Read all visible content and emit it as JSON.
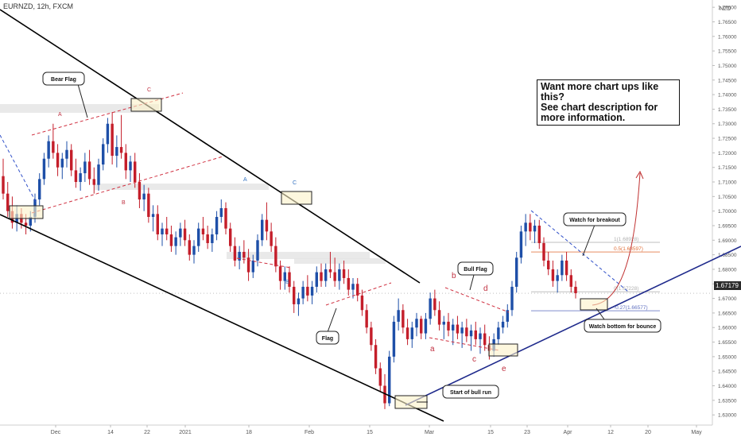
{
  "symbol": "EURNZD, 12h, FXCM",
  "currency": "NZD",
  "current_price": "1.67179",
  "callout": {
    "line1": "Want more chart ups like this?",
    "line2": "See chart description for more information."
  },
  "chart_data": {
    "type": "candlestick",
    "y_ticks": [
      "1.63000",
      "1.63500",
      "1.64000",
      "1.64500",
      "1.65000",
      "1.65500",
      "1.66000",
      "1.66500",
      "1.67000",
      "1.67500",
      "1.68000",
      "1.68500",
      "1.69000",
      "1.69500",
      "1.70000",
      "1.70500",
      "1.71000",
      "1.71500",
      "1.72000",
      "1.72500",
      "1.73000",
      "1.73500",
      "1.74000",
      "1.74500",
      "1.75000",
      "1.75500",
      "1.76000",
      "1.76500",
      "1.77000"
    ],
    "x_ticks": [
      "Dec",
      "14",
      "22",
      "2021",
      "18",
      "Feb",
      "15",
      "Mar",
      "15",
      "23",
      "Apr",
      "12",
      "20",
      "May"
    ],
    "ylim": [
      1.6265,
      1.7725
    ],
    "colors": {
      "up": "#1e4fa8",
      "down": "#c41e2a",
      "trend": "#000000",
      "support": "#1f2a8c",
      "dashed": "#d03040",
      "watch": "#c03030"
    },
    "annotations": {
      "bear_flag": "Bear Flag",
      "flag": "Flag",
      "bull_flag": "Bull Flag",
      "start_bull": "Start of bull run",
      "watch_breakout": "Watch for breakout",
      "watch_bottom": "Watch bottom for bounce",
      "A1": "A",
      "B1": "B",
      "C1": "C",
      "A2": "A",
      "B2": "B",
      "C2": "C",
      "a": "a",
      "b": "b",
      "c": "c",
      "d": "d",
      "e": "e"
    },
    "fib_levels": [
      {
        "label": "1(1.68928)",
        "price": 1.68928,
        "color": "#b0b0b0"
      },
      {
        "label": "0.5(1.68597)",
        "price": 1.68597,
        "color": "#e0703a"
      },
      {
        "label": "0(1.67228)",
        "price": 1.67228,
        "color": "#b0b0b0"
      },
      {
        "label": "-0.27(1.66577)",
        "price": 1.66577,
        "color": "#6070c0"
      }
    ],
    "candles": [
      [
        1.712,
        1.718,
        1.704,
        1.706
      ],
      [
        1.706,
        1.71,
        1.698,
        1.7
      ],
      [
        1.7,
        1.705,
        1.694,
        1.696
      ],
      [
        1.696,
        1.702,
        1.693,
        1.699
      ],
      [
        1.699,
        1.701,
        1.694,
        1.696
      ],
      [
        1.696,
        1.699,
        1.692,
        1.695
      ],
      [
        1.695,
        1.7,
        1.693,
        1.698
      ],
      [
        1.698,
        1.706,
        1.696,
        1.704
      ],
      [
        1.704,
        1.713,
        1.702,
        1.711
      ],
      [
        1.711,
        1.72,
        1.709,
        1.718
      ],
      [
        1.718,
        1.726,
        1.715,
        1.724
      ],
      [
        1.724,
        1.73,
        1.718,
        1.72
      ],
      [
        1.72,
        1.723,
        1.712,
        1.715
      ],
      [
        1.715,
        1.72,
        1.711,
        1.718
      ],
      [
        1.718,
        1.724,
        1.715,
        1.721
      ],
      [
        1.721,
        1.723,
        1.712,
        1.714
      ],
      [
        1.714,
        1.718,
        1.708,
        1.71
      ],
      [
        1.71,
        1.715,
        1.707,
        1.713
      ],
      [
        1.713,
        1.72,
        1.71,
        1.717
      ],
      [
        1.717,
        1.721,
        1.709,
        1.711
      ],
      [
        1.711,
        1.715,
        1.706,
        1.709
      ],
      [
        1.709,
        1.718,
        1.707,
        1.716
      ],
      [
        1.716,
        1.725,
        1.714,
        1.723
      ],
      [
        1.723,
        1.732,
        1.72,
        1.73
      ],
      [
        1.73,
        1.734,
        1.716,
        1.719
      ],
      [
        1.719,
        1.726,
        1.715,
        1.722
      ],
      [
        1.722,
        1.733,
        1.718,
        1.72
      ],
      [
        1.72,
        1.723,
        1.711,
        1.714
      ],
      [
        1.714,
        1.719,
        1.71,
        1.717
      ],
      [
        1.717,
        1.72,
        1.708,
        1.71
      ],
      [
        1.71,
        1.713,
        1.701,
        1.704
      ],
      [
        1.704,
        1.709,
        1.7,
        1.706
      ],
      [
        1.706,
        1.708,
        1.696,
        1.698
      ],
      [
        1.698,
        1.702,
        1.693,
        1.699
      ],
      [
        1.699,
        1.702,
        1.69,
        1.692
      ],
      [
        1.692,
        1.696,
        1.688,
        1.694
      ],
      [
        1.694,
        1.698,
        1.69,
        1.692
      ],
      [
        1.692,
        1.695,
        1.686,
        1.688
      ],
      [
        1.688,
        1.693,
        1.685,
        1.691
      ],
      [
        1.691,
        1.696,
        1.688,
        1.694
      ],
      [
        1.694,
        1.697,
        1.688,
        1.69
      ],
      [
        1.69,
        1.692,
        1.683,
        1.685
      ],
      [
        1.685,
        1.69,
        1.682,
        1.688
      ],
      [
        1.688,
        1.696,
        1.686,
        1.694
      ],
      [
        1.694,
        1.698,
        1.69,
        1.692
      ],
      [
        1.692,
        1.695,
        1.687,
        1.689
      ],
      [
        1.689,
        1.694,
        1.686,
        1.692
      ],
      [
        1.692,
        1.7,
        1.69,
        1.698
      ],
      [
        1.698,
        1.704,
        1.696,
        1.701
      ],
      [
        1.701,
        1.703,
        1.692,
        1.694
      ],
      [
        1.694,
        1.696,
        1.686,
        1.688
      ],
      [
        1.688,
        1.691,
        1.681,
        1.683
      ],
      [
        1.683,
        1.688,
        1.68,
        1.686
      ],
      [
        1.686,
        1.69,
        1.682,
        1.684
      ],
      [
        1.684,
        1.687,
        1.676,
        1.679
      ],
      [
        1.679,
        1.685,
        1.677,
        1.683
      ],
      [
        1.683,
        1.692,
        1.681,
        1.69
      ],
      [
        1.69,
        1.699,
        1.688,
        1.697
      ],
      [
        1.697,
        1.703,
        1.69,
        1.693
      ],
      [
        1.693,
        1.696,
        1.686,
        1.688
      ],
      [
        1.688,
        1.691,
        1.679,
        1.681
      ],
      [
        1.681,
        1.683,
        1.673,
        1.676
      ],
      [
        1.676,
        1.681,
        1.673,
        1.679
      ],
      [
        1.679,
        1.681,
        1.672,
        1.674
      ],
      [
        1.674,
        1.676,
        1.665,
        1.668
      ],
      [
        1.668,
        1.672,
        1.664,
        1.67
      ],
      [
        1.67,
        1.676,
        1.668,
        1.674
      ],
      [
        1.674,
        1.678,
        1.669,
        1.671
      ],
      [
        1.671,
        1.676,
        1.668,
        1.674
      ],
      [
        1.674,
        1.681,
        1.672,
        1.679
      ],
      [
        1.679,
        1.682,
        1.674,
        1.676
      ],
      [
        1.676,
        1.682,
        1.674,
        1.68
      ],
      [
        1.68,
        1.686,
        1.677,
        1.679
      ],
      [
        1.679,
        1.684,
        1.674,
        1.676
      ],
      [
        1.676,
        1.682,
        1.673,
        1.68
      ],
      [
        1.68,
        1.683,
        1.675,
        1.677
      ],
      [
        1.677,
        1.68,
        1.671,
        1.673
      ],
      [
        1.673,
        1.677,
        1.67,
        1.675
      ],
      [
        1.675,
        1.677,
        1.669,
        1.671
      ],
      [
        1.671,
        1.673,
        1.664,
        1.666
      ],
      [
        1.666,
        1.668,
        1.658,
        1.66
      ],
      [
        1.66,
        1.662,
        1.652,
        1.654
      ],
      [
        1.654,
        1.656,
        1.644,
        1.646
      ],
      [
        1.646,
        1.648,
        1.638,
        1.64
      ],
      [
        1.64,
        1.644,
        1.632,
        1.634
      ],
      [
        1.634,
        1.652,
        1.633,
        1.65
      ],
      [
        1.65,
        1.664,
        1.648,
        1.662
      ],
      [
        1.662,
        1.67,
        1.659,
        1.666
      ],
      [
        1.666,
        1.668,
        1.658,
        1.66
      ],
      [
        1.66,
        1.663,
        1.654,
        1.656
      ],
      [
        1.656,
        1.662,
        1.653,
        1.66
      ],
      [
        1.66,
        1.665,
        1.657,
        1.663
      ],
      [
        1.663,
        1.664,
        1.656,
        1.658
      ],
      [
        1.658,
        1.665,
        1.656,
        1.663
      ],
      [
        1.663,
        1.672,
        1.661,
        1.67
      ],
      [
        1.67,
        1.673,
        1.664,
        1.666
      ],
      [
        1.666,
        1.669,
        1.659,
        1.661
      ],
      [
        1.661,
        1.664,
        1.656,
        1.662
      ],
      [
        1.662,
        1.665,
        1.657,
        1.659
      ],
      [
        1.659,
        1.663,
        1.654,
        1.661
      ],
      [
        1.661,
        1.664,
        1.656,
        1.658
      ],
      [
        1.658,
        1.662,
        1.653,
        1.66
      ],
      [
        1.66,
        1.663,
        1.655,
        1.657
      ],
      [
        1.657,
        1.661,
        1.652,
        1.659
      ],
      [
        1.659,
        1.662,
        1.654,
        1.656
      ],
      [
        1.656,
        1.66,
        1.651,
        1.658
      ],
      [
        1.658,
        1.661,
        1.652,
        1.654
      ],
      [
        1.654,
        1.657,
        1.649,
        1.652
      ],
      [
        1.652,
        1.658,
        1.65,
        1.656
      ],
      [
        1.656,
        1.662,
        1.654,
        1.66
      ],
      [
        1.66,
        1.664,
        1.658,
        1.662
      ],
      [
        1.662,
        1.668,
        1.66,
        1.666
      ],
      [
        1.666,
        1.676,
        1.664,
        1.674
      ],
      [
        1.674,
        1.686,
        1.672,
        1.684
      ],
      [
        1.684,
        1.695,
        1.682,
        1.693
      ],
      [
        1.693,
        1.699,
        1.688,
        1.696
      ],
      [
        1.696,
        1.699,
        1.69,
        1.693
      ],
      [
        1.693,
        1.697,
        1.689,
        1.695
      ],
      [
        1.695,
        1.697,
        1.687,
        1.689
      ],
      [
        1.689,
        1.691,
        1.681,
        1.683
      ],
      [
        1.683,
        1.686,
        1.678,
        1.68
      ],
      [
        1.68,
        1.683,
        1.674,
        1.676
      ],
      [
        1.676,
        1.68,
        1.672,
        1.678
      ],
      [
        1.678,
        1.685,
        1.676,
        1.683
      ],
      [
        1.683,
        1.686,
        1.676,
        1.678
      ],
      [
        1.678,
        1.68,
        1.672,
        1.674
      ],
      [
        1.674,
        1.676,
        1.67,
        1.6718
      ]
    ]
  }
}
